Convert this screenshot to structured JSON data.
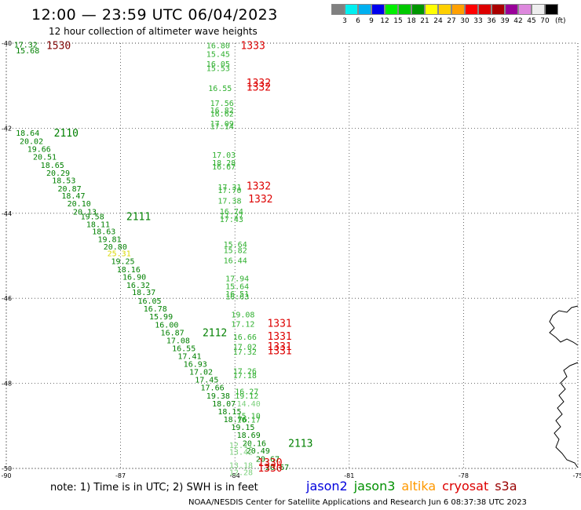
{
  "header": {
    "title": "12:00 — 23:59 UTC 06/04/2023",
    "subtitle": "12 hour collection of altimeter wave heights"
  },
  "color_scale": {
    "bins": [
      {
        "label": "3",
        "color": "#00f0f0"
      },
      {
        "label": "6",
        "color": "#00b0f0"
      },
      {
        "label": "9",
        "color": "#0000ee"
      },
      {
        "label": "12",
        "color": "#00f000"
      },
      {
        "label": "15",
        "color": "#00c800"
      },
      {
        "label": "18",
        "color": "#009600"
      },
      {
        "label": "21",
        "color": "#ffff00"
      },
      {
        "label": "24",
        "color": "#ffd000"
      },
      {
        "label": "27",
        "color": "#ffa000"
      },
      {
        "label": "30",
        "color": "#ff0000"
      },
      {
        "label": "33",
        "color": "#dd0000"
      },
      {
        "label": "36",
        "color": "#aa0000"
      },
      {
        "label": "39",
        "color": "#990099"
      },
      {
        "label": "42",
        "color": "#dd88dd"
      },
      {
        "label": "45",
        "color": "#eeeeee"
      },
      {
        "label": "70",
        "color": "#000000"
      }
    ],
    "first_color": "#808080",
    "unit": "(ft)"
  },
  "axes": {
    "lon_ticks": [
      "-90",
      "-87",
      "-84",
      "-81",
      "-78",
      "-75"
    ],
    "lat_ticks": [
      "-40",
      "-42",
      "-44",
      "-46",
      "-48",
      "-50"
    ]
  },
  "tracks": [
    {
      "sat": "jason3",
      "pass": "2110",
      "color": "#008000",
      "values": [
        {
          "lat": -40.03,
          "lon": -89.8,
          "swh": "17.32"
        },
        {
          "lat": -40.17,
          "lon": -89.75,
          "swh": "15.68"
        },
        {
          "lat": -42.1,
          "lon": -89.75,
          "swh": "18.64"
        },
        {
          "lat": -42.3,
          "lon": -89.65,
          "swh": "20.02"
        },
        {
          "lat": -42.48,
          "lon": -89.45,
          "swh": "19.66"
        },
        {
          "lat": -42.67,
          "lon": -89.3,
          "swh": "20.51"
        },
        {
          "lat": -42.86,
          "lon": -89.1,
          "swh": "18.65"
        },
        {
          "lat": -43.04,
          "lon": -88.95,
          "swh": "20.29"
        },
        {
          "lat": -43.22,
          "lon": -88.8,
          "swh": "18.53"
        },
        {
          "lat": -43.41,
          "lon": -88.65,
          "swh": "20.87"
        },
        {
          "lat": -43.58,
          "lon": -88.55,
          "swh": "18.47"
        },
        {
          "lat": -43.76,
          "lon": -88.4,
          "swh": "20.10"
        },
        {
          "lat": -43.96,
          "lon": -88.25,
          "swh": "20.13"
        }
      ]
    },
    {
      "sat": "jason3",
      "pass": "2111",
      "color": "#008000",
      "values": [
        {
          "lat": -44.07,
          "lon": -88.05,
          "swh": "19.58"
        },
        {
          "lat": -44.25,
          "lon": -87.9,
          "swh": "18.11"
        },
        {
          "lat": -44.42,
          "lon": -87.75,
          "swh": "18.63"
        },
        {
          "lat": -44.6,
          "lon": -87.6,
          "swh": "19.81"
        },
        {
          "lat": -44.78,
          "lon": -87.45,
          "swh": "20.80"
        },
        {
          "lat": -44.94,
          "lon": -87.35,
          "swh": "25.31",
          "color": "#d8d800"
        },
        {
          "lat": -45.12,
          "lon": -87.25,
          "swh": "19.25"
        },
        {
          "lat": -45.31,
          "lon": -87.1,
          "swh": "18.16"
        },
        {
          "lat": -45.49,
          "lon": -86.95,
          "swh": "16.90"
        },
        {
          "lat": -45.68,
          "lon": -86.85,
          "swh": "16.32"
        },
        {
          "lat": -45.85,
          "lon": -86.7,
          "swh": "18.37"
        },
        {
          "lat": -46.05,
          "lon": -86.55,
          "swh": "16.05"
        },
        {
          "lat": -46.24,
          "lon": -86.4,
          "swh": "16.78"
        },
        {
          "lat": -46.42,
          "lon": -86.25,
          "swh": "15.99"
        },
        {
          "lat": -46.61,
          "lon": -86.1,
          "swh": "16.00"
        }
      ]
    },
    {
      "sat": "jason3",
      "pass": "2112",
      "color": "#008000",
      "values": [
        {
          "lat": -46.8,
          "lon": -85.95,
          "swh": "16.87"
        },
        {
          "lat": -46.98,
          "lon": -85.8,
          "swh": "17.08"
        },
        {
          "lat": -47.17,
          "lon": -85.65,
          "swh": "16.55"
        },
        {
          "lat": -47.35,
          "lon": -85.5,
          "swh": "17.41"
        },
        {
          "lat": -47.54,
          "lon": -85.35,
          "swh": "16.93"
        },
        {
          "lat": -47.72,
          "lon": -85.2,
          "swh": "17.02"
        },
        {
          "lat": -47.91,
          "lon": -85.05,
          "swh": "17.45"
        },
        {
          "lat": -48.09,
          "lon": -84.9,
          "swh": "17.66"
        },
        {
          "lat": -48.28,
          "lon": -84.75,
          "swh": "19.38"
        },
        {
          "lat": -48.47,
          "lon": -84.6,
          "swh": "18.07"
        },
        {
          "lat": -48.65,
          "lon": -84.45,
          "swh": "18.15"
        },
        {
          "lat": -48.84,
          "lon": -84.3,
          "swh": "18.76"
        }
      ]
    },
    {
      "sat": "jason3",
      "pass": "2113",
      "color": "#008000",
      "values": [
        {
          "lat": -49.02,
          "lon": -84.1,
          "swh": "19.15"
        },
        {
          "lat": -49.21,
          "lon": -83.95,
          "swh": "18.69"
        },
        {
          "lat": -49.4,
          "lon": -83.8,
          "swh": "20.16"
        },
        {
          "lat": -49.58,
          "lon": -83.7,
          "swh": "20.49"
        },
        {
          "lat": -49.77,
          "lon": -83.45,
          "swh": "20.67"
        },
        {
          "lat": -49.96,
          "lon": -83.2,
          "swh": "20.67"
        }
      ]
    },
    {
      "sat": "jason3",
      "pass": "",
      "color": "#30b030",
      "values": [
        {
          "lat": -40.05,
          "lon": -84.75,
          "swh": "16.80"
        },
        {
          "lat": -40.25,
          "lon": -84.75,
          "swh": "15.45"
        },
        {
          "lat": -40.48,
          "lon": -84.75,
          "swh": "16.05"
        },
        {
          "lat": -40.58,
          "lon": -84.75,
          "swh": "15.53"
        },
        {
          "lat": -41.05,
          "lon": -84.7,
          "swh": "16.55"
        },
        {
          "lat": -41.4,
          "lon": -84.65,
          "swh": "17.56"
        },
        {
          "lat": -41.57,
          "lon": -84.65,
          "swh": "16.82"
        },
        {
          "lat": -41.65,
          "lon": -84.65,
          "swh": "16.62"
        },
        {
          "lat": -41.88,
          "lon": -84.65,
          "swh": "17.09"
        },
        {
          "lat": -41.95,
          "lon": -84.65,
          "swh": "17.14"
        },
        {
          "lat": -42.62,
          "lon": -84.6,
          "swh": "17.03"
        },
        {
          "lat": -42.8,
          "lon": -84.6,
          "swh": "18.28"
        },
        {
          "lat": -42.9,
          "lon": -84.6,
          "swh": "16.67"
        },
        {
          "lat": -43.38,
          "lon": -84.45,
          "swh": "17.31"
        },
        {
          "lat": -43.45,
          "lon": -84.45,
          "swh": "17.70"
        },
        {
          "lat": -43.7,
          "lon": -84.45,
          "swh": "17.38"
        },
        {
          "lat": -43.95,
          "lon": -84.4,
          "swh": "16.74"
        },
        {
          "lat": -44.05,
          "lon": -84.4,
          "swh": "17.27"
        },
        {
          "lat": -44.13,
          "lon": -84.4,
          "swh": "17.43"
        },
        {
          "lat": -44.72,
          "lon": -84.3,
          "swh": "15.64"
        },
        {
          "lat": -44.86,
          "lon": -84.3,
          "swh": "15.82"
        },
        {
          "lat": -45.1,
          "lon": -84.3,
          "swh": "16.44"
        },
        {
          "lat": -45.53,
          "lon": -84.25,
          "swh": "17.94"
        },
        {
          "lat": -45.71,
          "lon": -84.25,
          "swh": "15.64"
        },
        {
          "lat": -45.89,
          "lon": -84.25,
          "swh": "16.51"
        },
        {
          "lat": -45.95,
          "lon": -84.25,
          "swh": "16.63"
        },
        {
          "lat": -46.37,
          "lon": -84.1,
          "swh": "19.08"
        },
        {
          "lat": -46.6,
          "lon": -84.1,
          "swh": "17.12"
        },
        {
          "lat": -46.9,
          "lon": -84.05,
          "swh": "16.66"
        },
        {
          "lat": -47.13,
          "lon": -84.05,
          "swh": "17.02"
        },
        {
          "lat": -47.25,
          "lon": -84.05,
          "swh": "17.32"
        },
        {
          "lat": -47.7,
          "lon": -84.05,
          "swh": "17.26"
        },
        {
          "lat": -47.8,
          "lon": -84.05,
          "swh": "17.18"
        },
        {
          "lat": -48.18,
          "lon": -84.0,
          "swh": "16.27"
        },
        {
          "lat": -48.28,
          "lon": -84.0,
          "swh": "19.12"
        },
        {
          "lat": -48.47,
          "lon": -83.95,
          "swh": "14.40",
          "color": "#7cd07c"
        },
        {
          "lat": -48.75,
          "lon": -83.95,
          "swh": "15.10"
        },
        {
          "lat": -48.85,
          "lon": -83.95,
          "swh": "16.17"
        },
        {
          "lat": -49.45,
          "lon": -84.15,
          "swh": "12.11",
          "color": "#7cd07c"
        },
        {
          "lat": -49.6,
          "lon": -84.15,
          "swh": "13.42",
          "color": "#7cd07c"
        },
        {
          "lat": -49.92,
          "lon": -84.15,
          "swh": "13.18",
          "color": "#7cd07c"
        },
        {
          "lat": -50.08,
          "lon": -84.15,
          "swh": "12.28",
          "color": "#7cd07c"
        }
      ]
    }
  ],
  "pass_labels": [
    {
      "text": "1530",
      "lat": -40.05,
      "lon": -88.95,
      "color": "#800000"
    },
    {
      "text": "2110",
      "lat": -42.1,
      "lon": -88.75,
      "color": "#008000"
    },
    {
      "text": "2111",
      "lat": -44.07,
      "lon": -86.85,
      "color": "#008000"
    },
    {
      "text": "2112",
      "lat": -46.8,
      "lon": -84.85,
      "color": "#008000"
    },
    {
      "text": "2113",
      "lat": -49.4,
      "lon": -82.6,
      "color": "#008000"
    },
    {
      "text": "1333",
      "lat": -40.05,
      "lon": -83.85,
      "color": "#dd0000"
    },
    {
      "text": "1332",
      "lat": -40.92,
      "lon": -83.7,
      "color": "#dd0000"
    },
    {
      "text": "1332",
      "lat": -41.02,
      "lon": -83.7,
      "color": "#dd0000"
    },
    {
      "text": "1332",
      "lat": -43.35,
      "lon": -83.7,
      "color": "#dd0000"
    },
    {
      "text": "1332",
      "lat": -43.65,
      "lon": -83.65,
      "color": "#dd0000"
    },
    {
      "text": "1331",
      "lat": -46.58,
      "lon": -83.15,
      "color": "#dd0000"
    },
    {
      "text": "1331",
      "lat": -46.88,
      "lon": -83.15,
      "color": "#dd0000"
    },
    {
      "text": "1331",
      "lat": -47.12,
      "lon": -83.15,
      "color": "#dd0000"
    },
    {
      "text": "1331",
      "lat": -47.22,
      "lon": -83.15,
      "color": "#dd0000"
    },
    {
      "text": "1330",
      "lat": -49.85,
      "lon": -83.4,
      "color": "#dd0000"
    },
    {
      "text": "1330",
      "lat": -49.98,
      "lon": -83.4,
      "color": "#dd0000"
    }
  ],
  "footer": {
    "note": "note: 1) Time is in UTC; 2) SWH is in feet",
    "satellites": [
      {
        "name": "jason2",
        "color": "#0000dd"
      },
      {
        "name": "jason3",
        "color": "#009000"
      },
      {
        "name": "altika",
        "color": "#ff9900"
      },
      {
        "name": "cryosat",
        "color": "#dd0000"
      },
      {
        "name": "s3a",
        "color": "#990000"
      }
    ],
    "credit": "NOAA/NESDIS Center for Satellite Applications and Research    Jun  6 08:37:38 UTC 2023"
  }
}
